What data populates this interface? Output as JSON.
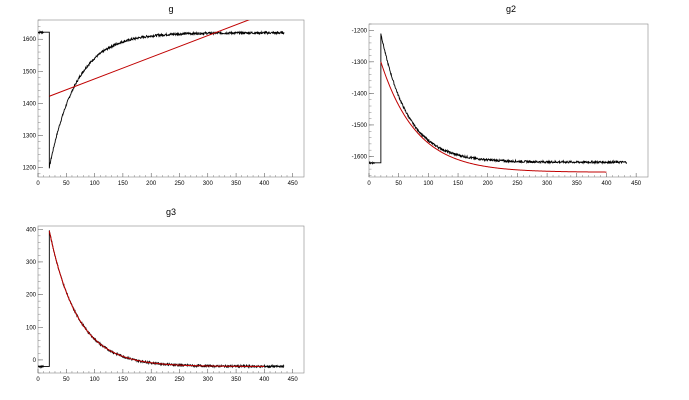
{
  "chart_data": [
    {
      "type": "line",
      "title": "g",
      "xlim": [
        0,
        470
      ],
      "ylim": [
        1170,
        1660
      ],
      "xticks": [
        0,
        50,
        100,
        150,
        200,
        250,
        300,
        350,
        400,
        450
      ],
      "xtick_labels": [
        "0",
        "50",
        "100",
        "150",
        "200",
        "250",
        "300",
        "350",
        "400",
        "450"
      ],
      "yticks": [
        1200,
        1300,
        1400,
        1500,
        1600
      ],
      "ytick_labels": [
        "1200",
        "1300",
        "1400",
        "1500",
        "1600"
      ],
      "data_curve": {
        "model": "exponential",
        "x_start": 20,
        "x_end": 435,
        "y_start": 1200,
        "y_end": 1620,
        "tau": 48,
        "baseline_segment": {
          "x_start": 0,
          "x_end": 10,
          "y": 1622
        }
      },
      "fit_line": {
        "model": "linear",
        "x_start": 20,
        "x_end": 375,
        "y_start": 1422,
        "y_end": 1662,
        "color": "#c00000"
      },
      "grid": false
    },
    {
      "type": "line",
      "title": "g2",
      "xlim": [
        0,
        470
      ],
      "ylim": [
        -1665,
        -1180
      ],
      "xticks": [
        0,
        50,
        100,
        150,
        200,
        250,
        300,
        350,
        400,
        450
      ],
      "xtick_labels": [
        "0",
        "50",
        "100",
        "150",
        "200",
        "250",
        "300",
        "350",
        "400",
        "450"
      ],
      "yticks": [
        -1600,
        -1500,
        -1400,
        -1300,
        -1200
      ],
      "ytick_labels": [
        "-1600",
        "-1500",
        "-1400",
        "-1300",
        "-1200"
      ],
      "data_curve": {
        "model": "exponential",
        "x_start": 20,
        "x_end": 435,
        "y_start": -1210,
        "y_end": -1618,
        "tau": 45,
        "baseline_segment": {
          "x_start": 0,
          "x_end": 10,
          "y": -1620
        }
      },
      "fit_curve": {
        "model": "exponential",
        "x_start": 20,
        "x_end": 400,
        "y_start": -1300,
        "y_end": -1650,
        "tau": 60,
        "color": "#c00000"
      },
      "grid": false
    },
    {
      "type": "line",
      "title": "g3",
      "xlim": [
        0,
        470
      ],
      "ylim": [
        -40,
        410
      ],
      "xticks": [
        0,
        50,
        100,
        150,
        200,
        250,
        300,
        350,
        400,
        450
      ],
      "xtick_labels": [
        "0",
        "50",
        "100",
        "150",
        "200",
        "250",
        "300",
        "350",
        "400",
        "450"
      ],
      "yticks": [
        0,
        100,
        200,
        300,
        400
      ],
      "ytick_labels": [
        "0",
        "100",
        "200",
        "300",
        "400"
      ],
      "data_curve": {
        "model": "exponential",
        "x_start": 20,
        "x_end": 435,
        "y_start": 395,
        "y_end": -20,
        "tau": 50,
        "baseline_segment": {
          "x_start": 0,
          "x_end": 10,
          "y": -20
        }
      },
      "fit_curve": {
        "model": "exponential",
        "x_start": 20,
        "x_end": 400,
        "y_start": 395,
        "y_end": -20,
        "tau": 50,
        "color": "#c00000"
      },
      "grid": false
    }
  ]
}
